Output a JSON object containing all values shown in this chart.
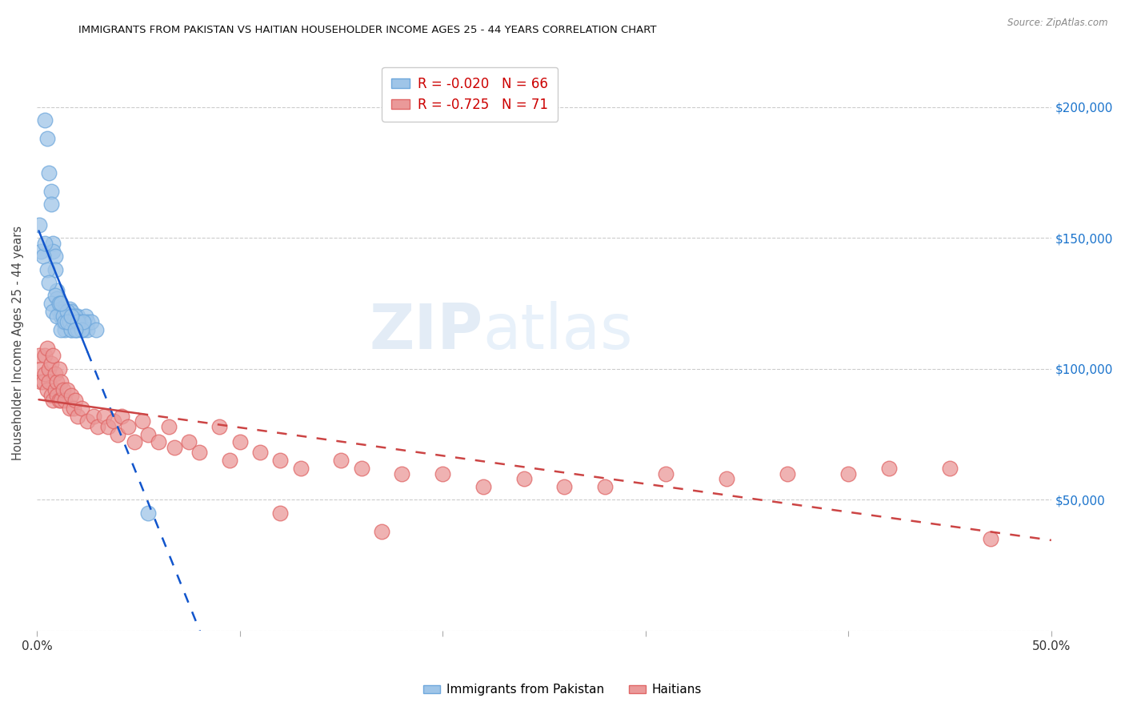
{
  "title": "IMMIGRANTS FROM PAKISTAN VS HAITIAN HOUSEHOLDER INCOME AGES 25 - 44 YEARS CORRELATION CHART",
  "source": "Source: ZipAtlas.com",
  "ylabel": "Householder Income Ages 25 - 44 years",
  "x_min": 0.0,
  "x_max": 0.5,
  "y_min": 0,
  "y_max": 220000,
  "y_ticks": [
    0,
    50000,
    100000,
    150000,
    200000
  ],
  "y_tick_labels_right": [
    "",
    "$50,000",
    "$100,000",
    "$150,000",
    "$200,000"
  ],
  "x_ticks": [
    0.0,
    0.1,
    0.2,
    0.3,
    0.4,
    0.5
  ],
  "x_tick_labels": [
    "0.0%",
    "",
    "",
    "",
    "",
    "50.0%"
  ],
  "pakistan_R": -0.02,
  "pakistan_N": 66,
  "haitian_R": -0.725,
  "haitian_N": 71,
  "pakistan_color": "#9fc5e8",
  "pakistan_edge_color": "#6fa8dc",
  "haitian_color": "#ea9999",
  "haitian_edge_color": "#e06666",
  "pakistan_line_color": "#1155cc",
  "haitian_line_color": "#cc4444",
  "legend_label_pakistan": "Immigrants from Pakistan",
  "legend_label_haitian": "Haitians",
  "pakistan_x": [
    0.004,
    0.005,
    0.006,
    0.007,
    0.007,
    0.008,
    0.008,
    0.009,
    0.009,
    0.01,
    0.01,
    0.011,
    0.011,
    0.012,
    0.012,
    0.013,
    0.013,
    0.014,
    0.014,
    0.015,
    0.015,
    0.016,
    0.016,
    0.017,
    0.017,
    0.018,
    0.019,
    0.019,
    0.02,
    0.021,
    0.022,
    0.023,
    0.024,
    0.025,
    0.001,
    0.002,
    0.003,
    0.004,
    0.005,
    0.006,
    0.007,
    0.008,
    0.009,
    0.01,
    0.011,
    0.012,
    0.013,
    0.014,
    0.015,
    0.016,
    0.017,
    0.018,
    0.019,
    0.02,
    0.021,
    0.025,
    0.027,
    0.029,
    0.012,
    0.015,
    0.055,
    0.02,
    0.022,
    0.023,
    0.017,
    0.019
  ],
  "pakistan_y": [
    195000,
    188000,
    175000,
    168000,
    163000,
    148000,
    145000,
    143000,
    138000,
    130000,
    127000,
    125000,
    122000,
    123000,
    120000,
    122000,
    118000,
    120000,
    115000,
    122000,
    118000,
    123000,
    118000,
    122000,
    115000,
    120000,
    118000,
    115000,
    120000,
    118000,
    118000,
    115000,
    120000,
    118000,
    155000,
    145000,
    143000,
    148000,
    138000,
    133000,
    125000,
    122000,
    128000,
    120000,
    125000,
    115000,
    120000,
    118000,
    122000,
    118000,
    115000,
    118000,
    120000,
    115000,
    118000,
    115000,
    118000,
    115000,
    125000,
    118000,
    45000,
    118000,
    115000,
    118000,
    120000,
    115000
  ],
  "haitian_x": [
    0.001,
    0.002,
    0.002,
    0.003,
    0.004,
    0.004,
    0.005,
    0.005,
    0.006,
    0.006,
    0.007,
    0.007,
    0.008,
    0.008,
    0.009,
    0.009,
    0.01,
    0.01,
    0.011,
    0.011,
    0.012,
    0.012,
    0.013,
    0.014,
    0.015,
    0.016,
    0.017,
    0.018,
    0.019,
    0.02,
    0.022,
    0.025,
    0.028,
    0.03,
    0.033,
    0.035,
    0.038,
    0.04,
    0.042,
    0.045,
    0.048,
    0.052,
    0.055,
    0.06,
    0.065,
    0.068,
    0.075,
    0.08,
    0.09,
    0.095,
    0.1,
    0.11,
    0.12,
    0.13,
    0.15,
    0.16,
    0.18,
    0.2,
    0.22,
    0.24,
    0.26,
    0.28,
    0.31,
    0.34,
    0.37,
    0.4,
    0.42,
    0.45,
    0.47,
    0.12,
    0.17
  ],
  "haitian_y": [
    105000,
    100000,
    95000,
    95000,
    105000,
    98000,
    108000,
    92000,
    100000,
    95000,
    102000,
    90000,
    105000,
    88000,
    98000,
    92000,
    95000,
    90000,
    100000,
    88000,
    95000,
    88000,
    92000,
    88000,
    92000,
    85000,
    90000,
    85000,
    88000,
    82000,
    85000,
    80000,
    82000,
    78000,
    82000,
    78000,
    80000,
    75000,
    82000,
    78000,
    72000,
    80000,
    75000,
    72000,
    78000,
    70000,
    72000,
    68000,
    78000,
    65000,
    72000,
    68000,
    65000,
    62000,
    65000,
    62000,
    60000,
    60000,
    55000,
    58000,
    55000,
    55000,
    60000,
    58000,
    60000,
    60000,
    62000,
    62000,
    35000,
    45000,
    38000
  ]
}
